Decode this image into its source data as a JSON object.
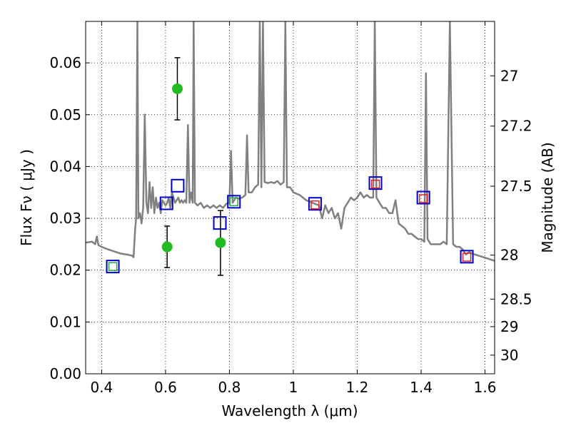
{
  "chart_data": {
    "type": "scatter",
    "xlabel": "Wavelength  λ (μm)",
    "ylabel_left": "Flux  Fν  ( μJy )",
    "ylabel_right": "Magnitude (AB)",
    "xlim": [
      0.35,
      1.63
    ],
    "ylim": [
      0.0,
      0.068
    ],
    "grid": true,
    "x_ticks": [
      {
        "v": 0.4,
        "label": "0.4"
      },
      {
        "v": 0.6,
        "label": "0.6"
      },
      {
        "v": 0.8,
        "label": "0.8"
      },
      {
        "v": 1.0,
        "label": "1"
      },
      {
        "v": 1.2,
        "label": "1.2"
      },
      {
        "v": 1.4,
        "label": "1.4"
      },
      {
        "v": 1.6,
        "label": "1.6"
      }
    ],
    "y_ticks": [
      {
        "v": 0.0,
        "label": "0.00"
      },
      {
        "v": 0.01,
        "label": "0.01"
      },
      {
        "v": 0.02,
        "label": "0.02"
      },
      {
        "v": 0.03,
        "label": "0.03"
      },
      {
        "v": 0.04,
        "label": "0.04"
      },
      {
        "v": 0.05,
        "label": "0.05"
      },
      {
        "v": 0.06,
        "label": "0.06"
      }
    ],
    "y2_ticks": [
      {
        "label": "27",
        "flux": 0.0575
      },
      {
        "label": "27.2",
        "flux": 0.0478
      },
      {
        "label": "27.5",
        "flux": 0.0362
      },
      {
        "label": "28",
        "flux": 0.0229
      },
      {
        "label": "28.5",
        "flux": 0.0144
      },
      {
        "label": "29",
        "flux": 0.0091
      },
      {
        "label": "30",
        "flux": 0.0036
      }
    ],
    "model_spectrum": {
      "color": "#808080",
      "points": [
        [
          0.35,
          0.0253
        ],
        [
          0.37,
          0.0255
        ],
        [
          0.38,
          0.025
        ],
        [
          0.385,
          0.0265
        ],
        [
          0.39,
          0.0248
        ],
        [
          0.4,
          0.0245
        ],
        [
          0.42,
          0.024
        ],
        [
          0.44,
          0.0236
        ],
        [
          0.46,
          0.0232
        ],
        [
          0.48,
          0.023
        ],
        [
          0.495,
          0.0228
        ],
        [
          0.5,
          0.0225
        ],
        [
          0.505,
          0.028
        ],
        [
          0.508,
          0.03
        ],
        [
          0.512,
          0.068
        ],
        [
          0.515,
          0.03
        ],
        [
          0.52,
          0.031
        ],
        [
          0.525,
          0.029
        ],
        [
          0.53,
          0.032
        ],
        [
          0.535,
          0.05
        ],
        [
          0.54,
          0.033
        ],
        [
          0.545,
          0.031
        ],
        [
          0.55,
          0.037
        ],
        [
          0.555,
          0.032
        ],
        [
          0.56,
          0.036
        ],
        [
          0.565,
          0.031
        ],
        [
          0.57,
          0.034
        ],
        [
          0.575,
          0.032
        ],
        [
          0.58,
          0.033
        ],
        [
          0.585,
          0.031
        ],
        [
          0.59,
          0.0335
        ],
        [
          0.6,
          0.0325
        ],
        [
          0.605,
          0.033
        ],
        [
          0.61,
          0.034
        ],
        [
          0.615,
          0.032
        ],
        [
          0.62,
          0.035
        ],
        [
          0.63,
          0.033
        ],
        [
          0.64,
          0.034
        ],
        [
          0.645,
          0.033
        ],
        [
          0.65,
          0.0335
        ],
        [
          0.655,
          0.033
        ],
        [
          0.66,
          0.0335
        ],
        [
          0.665,
          0.033
        ],
        [
          0.67,
          0.048
        ],
        [
          0.675,
          0.033
        ],
        [
          0.68,
          0.035
        ],
        [
          0.685,
          0.033
        ],
        [
          0.688,
          0.068
        ],
        [
          0.692,
          0.033
        ],
        [
          0.7,
          0.0325
        ],
        [
          0.71,
          0.033
        ],
        [
          0.72,
          0.032
        ],
        [
          0.73,
          0.0325
        ],
        [
          0.74,
          0.032
        ],
        [
          0.75,
          0.0325
        ],
        [
          0.76,
          0.032
        ],
        [
          0.77,
          0.0325
        ],
        [
          0.78,
          0.032
        ],
        [
          0.79,
          0.0328
        ],
        [
          0.8,
          0.033
        ],
        [
          0.805,
          0.043
        ],
        [
          0.81,
          0.033
        ],
        [
          0.82,
          0.034
        ],
        [
          0.83,
          0.0338
        ],
        [
          0.84,
          0.034
        ],
        [
          0.85,
          0.0345
        ],
        [
          0.855,
          0.046
        ],
        [
          0.86,
          0.035
        ],
        [
          0.87,
          0.035
        ],
        [
          0.88,
          0.036
        ],
        [
          0.89,
          0.0365
        ],
        [
          0.895,
          0.068
        ],
        [
          0.9,
          0.036
        ],
        [
          0.905,
          0.068
        ],
        [
          0.91,
          0.037
        ],
        [
          0.92,
          0.0368
        ],
        [
          0.93,
          0.037
        ],
        [
          0.94,
          0.0368
        ],
        [
          0.95,
          0.0372
        ],
        [
          0.96,
          0.0365
        ],
        [
          0.97,
          0.037
        ],
        [
          0.975,
          0.068
        ],
        [
          0.98,
          0.036
        ],
        [
          0.99,
          0.036
        ],
        [
          1.0,
          0.035
        ],
        [
          1.02,
          0.0345
        ],
        [
          1.04,
          0.0335
        ],
        [
          1.06,
          0.033
        ],
        [
          1.08,
          0.0325
        ],
        [
          1.09,
          0.03
        ],
        [
          1.1,
          0.0325
        ],
        [
          1.11,
          0.031
        ],
        [
          1.12,
          0.032
        ],
        [
          1.13,
          0.03
        ],
        [
          1.14,
          0.031
        ],
        [
          1.15,
          0.028
        ],
        [
          1.16,
          0.032
        ],
        [
          1.17,
          0.033
        ],
        [
          1.18,
          0.034
        ],
        [
          1.19,
          0.0335
        ],
        [
          1.2,
          0.034
        ],
        [
          1.21,
          0.035
        ],
        [
          1.22,
          0.034
        ],
        [
          1.23,
          0.0345
        ],
        [
          1.24,
          0.034
        ],
        [
          1.25,
          0.034
        ],
        [
          1.255,
          0.068
        ],
        [
          1.26,
          0.034
        ],
        [
          1.27,
          0.033
        ],
        [
          1.28,
          0.032
        ],
        [
          1.29,
          0.032
        ],
        [
          1.3,
          0.031
        ],
        [
          1.31,
          0.031
        ],
        [
          1.32,
          0.0335
        ],
        [
          1.325,
          0.031
        ],
        [
          1.33,
          0.029
        ],
        [
          1.34,
          0.0285
        ],
        [
          1.35,
          0.028
        ],
        [
          1.36,
          0.027
        ],
        [
          1.37,
          0.027
        ],
        [
          1.38,
          0.0265
        ],
        [
          1.39,
          0.026
        ],
        [
          1.4,
          0.026
        ],
        [
          1.41,
          0.0255
        ],
        [
          1.415,
          0.058
        ],
        [
          1.42,
          0.026
        ],
        [
          1.43,
          0.025
        ],
        [
          1.44,
          0.025
        ],
        [
          1.45,
          0.025
        ],
        [
          1.46,
          0.025
        ],
        [
          1.47,
          0.0255
        ],
        [
          1.48,
          0.025
        ],
        [
          1.49,
          0.068
        ],
        [
          1.5,
          0.025
        ],
        [
          1.51,
          0.0245
        ],
        [
          1.52,
          0.0245
        ],
        [
          1.53,
          0.024
        ],
        [
          1.54,
          0.023
        ],
        [
          1.55,
          0.0235
        ],
        [
          1.56,
          0.0232
        ],
        [
          1.57,
          0.023
        ],
        [
          1.58,
          0.0228
        ],
        [
          1.59,
          0.0226
        ],
        [
          1.6,
          0.0224
        ],
        [
          1.61,
          0.0222
        ],
        [
          1.62,
          0.022
        ],
        [
          1.63,
          0.0218
        ]
      ]
    },
    "measured_points": {
      "color": "#22bb22",
      "points": [
        {
          "x": 0.605,
          "y": 0.0245,
          "ylow": 0.0205,
          "yhigh": 0.0285
        },
        {
          "x": 0.637,
          "y": 0.055,
          "ylow": 0.049,
          "yhigh": 0.061
        },
        {
          "x": 0.772,
          "y": 0.0253,
          "ylow": 0.019,
          "yhigh": 0.0315
        }
      ]
    },
    "model_photometry_blue": {
      "color": "#0000cc",
      "points": [
        {
          "x": 0.435,
          "y": 0.0207
        },
        {
          "x": 0.603,
          "y": 0.0329
        },
        {
          "x": 0.638,
          "y": 0.0363
        },
        {
          "x": 0.77,
          "y": 0.0291
        },
        {
          "x": 0.814,
          "y": 0.0332
        },
        {
          "x": 1.068,
          "y": 0.0328
        },
        {
          "x": 1.257,
          "y": 0.0368
        },
        {
          "x": 1.407,
          "y": 0.034
        },
        {
          "x": 1.543,
          "y": 0.0226
        }
      ]
    },
    "model_photometry_green": {
      "color": "#22aa44",
      "points": [
        {
          "x": 0.435,
          "y": 0.0207
        },
        {
          "x": 0.814,
          "y": 0.0332
        }
      ]
    },
    "model_photometry_red": {
      "color": "#dd2222",
      "points": [
        {
          "x": 1.068,
          "y": 0.0326
        },
        {
          "x": 1.257,
          "y": 0.0366
        },
        {
          "x": 1.407,
          "y": 0.0338
        },
        {
          "x": 1.543,
          "y": 0.0225
        }
      ]
    }
  }
}
